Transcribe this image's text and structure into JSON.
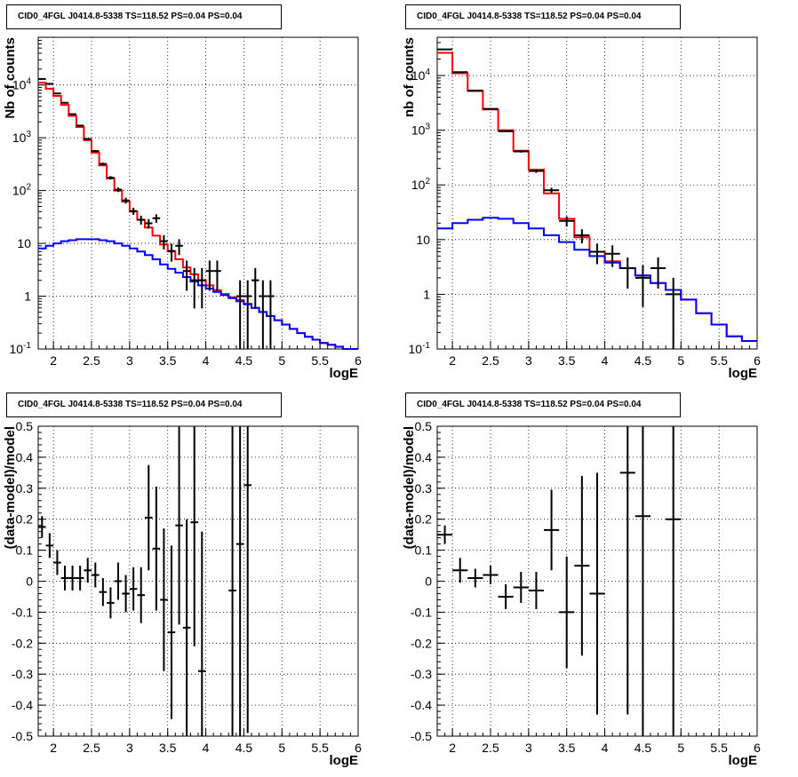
{
  "chart_data": [
    {
      "type": "histogram",
      "title": "CID0_4FGL J0414.8-5338 TS=118.52 PS=0.04 PS=0.04",
      "xlabel": "logE",
      "ylabel": "Nb of counts",
      "xlim": [
        1.8,
        6.0
      ],
      "ylim": [
        0.1,
        80000
      ],
      "log_y": true,
      "grid": true,
      "x_ticks": [
        "2",
        "2.5",
        "3",
        "3.5",
        "4",
        "4.5",
        "5",
        "5.5",
        "6"
      ],
      "y_ticks": [
        "10^-1",
        "1",
        "10",
        "10^2",
        "10^3",
        "10^4"
      ],
      "bin_width": 0.1,
      "series": [
        {
          "color": "#ff0000",
          "kind": "step",
          "x": [
            1.8,
            1.9,
            2.0,
            2.1,
            2.2,
            2.3,
            2.4,
            2.5,
            2.6,
            2.7,
            2.8,
            2.9,
            3.0,
            3.1,
            3.2,
            3.3,
            3.4,
            3.5,
            3.6,
            3.7,
            3.8,
            3.9,
            4.0,
            4.1,
            4.2,
            4.3,
            4.4,
            4.5,
            4.6,
            4.7,
            4.8,
            4.9,
            5.0,
            5.1,
            5.2,
            5.3,
            5.4,
            5.5,
            5.6,
            5.7,
            5.8,
            5.9
          ],
          "values": [
            11000,
            8500,
            6200,
            4200,
            2600,
            1600,
            900,
            520,
            300,
            170,
            100,
            62,
            40,
            28,
            20,
            14,
            9.5,
            7,
            5,
            3.5,
            2.6,
            2,
            1.6,
            1.3,
            1.1,
            0.95,
            0.85,
            0.72,
            0.6,
            0.5,
            0.42,
            0.35,
            0.29,
            0.24,
            0.2,
            0.17,
            0.15,
            0.13,
            0.12,
            0.11,
            0.1,
            0.1
          ]
        },
        {
          "color": "#0000ff",
          "kind": "step",
          "x": [
            1.8,
            1.9,
            2.0,
            2.1,
            2.2,
            2.3,
            2.4,
            2.5,
            2.6,
            2.7,
            2.8,
            2.9,
            3.0,
            3.1,
            3.2,
            3.3,
            3.4,
            3.5,
            3.6,
            3.7,
            3.8,
            3.9,
            4.0,
            4.1,
            4.2,
            4.3,
            4.4,
            4.5,
            4.6,
            4.7,
            4.8,
            4.9,
            5.0,
            5.1,
            5.2,
            5.3,
            5.4,
            5.5,
            5.6,
            5.7,
            5.8,
            5.9
          ],
          "values": [
            8,
            9,
            10,
            11,
            11.5,
            12,
            12,
            12,
            11.5,
            11,
            10,
            9,
            8,
            7,
            6,
            5,
            4,
            3.3,
            2.8,
            2.3,
            1.9,
            1.6,
            1.4,
            1.2,
            1.05,
            0.92,
            0.8,
            0.7,
            0.6,
            0.5,
            0.42,
            0.35,
            0.29,
            0.24,
            0.2,
            0.17,
            0.15,
            0.13,
            0.12,
            0.11,
            0.1,
            0.1
          ]
        }
      ],
      "points": {
        "color": "#000000",
        "x": [
          1.85,
          1.95,
          2.05,
          2.15,
          2.25,
          2.35,
          2.45,
          2.55,
          2.65,
          2.75,
          2.85,
          2.95,
          3.05,
          3.15,
          3.25,
          3.35,
          3.45,
          3.55,
          3.65,
          3.75,
          3.85,
          3.95,
          4.05,
          4.15,
          4.45,
          4.55,
          4.65,
          4.75,
          4.85
        ],
        "y": [
          13000,
          10500,
          6900,
          4600,
          2800,
          1700,
          950,
          560,
          320,
          175,
          104,
          65,
          41,
          28,
          24,
          30,
          11,
          7.2,
          9,
          3,
          2,
          2,
          3,
          3,
          1,
          1,
          2,
          1,
          1
        ]
      }
    },
    {
      "type": "histogram",
      "title": "CID0_4FGL J0414.8-5338 TS=118.52 PS=0.04 PS=0.04",
      "xlabel": "logE",
      "ylabel": "nb of counts",
      "xlim": [
        1.8,
        6.0
      ],
      "ylim": [
        0.1,
        50000
      ],
      "log_y": true,
      "grid": true,
      "x_ticks": [
        "2",
        "2.5",
        "3",
        "3.5",
        "4",
        "4.5",
        "5",
        "5.5",
        "6"
      ],
      "y_ticks": [
        "10^-1",
        "1",
        "10",
        "10^2",
        "10^3",
        "10^4"
      ],
      "bin_width": 0.2,
      "series": [
        {
          "color": "#ff0000",
          "kind": "step",
          "x": [
            1.8,
            2.0,
            2.2,
            2.4,
            2.6,
            2.8,
            3.0,
            3.2,
            3.4,
            3.6,
            3.8,
            4.0,
            4.2,
            4.4,
            4.6,
            4.8,
            5.0,
            5.2,
            5.4,
            5.6,
            5.8
          ],
          "values": [
            26000,
            11000,
            5200,
            2400,
            1000,
            420,
            190,
            70,
            24,
            11,
            6,
            4,
            3,
            2.2,
            1.6,
            1.2,
            0.8,
            0.45,
            0.28,
            0.17,
            0.14
          ]
        },
        {
          "color": "#0000ff",
          "kind": "step",
          "x": [
            1.8,
            2.0,
            2.2,
            2.4,
            2.6,
            2.8,
            3.0,
            3.2,
            3.4,
            3.6,
            3.8,
            4.0,
            4.2,
            4.4,
            4.6,
            4.8,
            5.0,
            5.2,
            5.4,
            5.6,
            5.8
          ],
          "values": [
            16,
            20,
            23,
            25,
            24,
            20,
            16,
            12,
            9,
            6.5,
            5,
            3.8,
            3,
            2.2,
            1.6,
            1.2,
            0.8,
            0.45,
            0.28,
            0.17,
            0.14
          ]
        }
      ],
      "points": {
        "color": "#000000",
        "x": [
          1.9,
          2.1,
          2.3,
          2.5,
          2.7,
          2.9,
          3.1,
          3.3,
          3.5,
          3.7,
          3.9,
          4.1,
          4.3,
          4.5,
          4.7,
          4.9
        ],
        "y": [
          30000,
          11500,
          5300,
          2450,
          960,
          410,
          180,
          80,
          22,
          12,
          6,
          5.5,
          3,
          2,
          3,
          1
        ]
      }
    },
    {
      "type": "scatter",
      "title": "CID0_4FGL J0414.8-5338 TS=118.52 PS=0.04 PS=0.04",
      "xlabel": "logE",
      "ylabel": "(data-model)/model",
      "xlim": [
        1.8,
        6.0
      ],
      "ylim": [
        -0.5,
        0.5
      ],
      "grid": true,
      "x_ticks": [
        "2",
        "2.5",
        "3",
        "3.5",
        "4",
        "4.5",
        "5",
        "5.5",
        "6"
      ],
      "y_ticks": [
        "-0.5",
        "-0.4",
        "-0.3",
        "-0.2",
        "-0.1",
        "0",
        "0.1",
        "0.2",
        "0.3",
        "0.4",
        "0.5"
      ],
      "points": {
        "color": "#000000",
        "xerr": 0.05,
        "x": [
          1.85,
          1.95,
          2.05,
          2.15,
          2.25,
          2.35,
          2.45,
          2.55,
          2.65,
          2.75,
          2.85,
          2.95,
          3.05,
          3.15,
          3.25,
          3.35,
          3.45,
          3.55,
          3.65,
          3.75,
          3.85,
          3.95,
          4.35,
          4.45,
          4.55
        ],
        "y": [
          0.175,
          0.115,
          0.06,
          0.01,
          0.01,
          0.01,
          0.035,
          0.02,
          -0.035,
          -0.07,
          0.0,
          -0.04,
          -0.025,
          -0.045,
          0.205,
          0.105,
          -0.06,
          -0.165,
          0.18,
          -0.15,
          0.19,
          -0.29,
          -0.03,
          0.12,
          0.31
        ],
        "yerr": [
          0.035,
          0.04,
          0.04,
          0.04,
          0.04,
          0.04,
          0.04,
          0.04,
          0.045,
          0.05,
          0.06,
          0.06,
          0.07,
          0.09,
          0.17,
          0.2,
          0.23,
          0.28,
          0.32,
          0.35,
          0.4,
          0.45,
          0.6,
          0.7,
          0.8
        ]
      }
    },
    {
      "type": "scatter",
      "title": "CID0_4FGL J0414.8-5338 TS=118.52 PS=0.04 PS=0.04",
      "xlabel": "logE",
      "ylabel": "(data-model)/model",
      "xlim": [
        1.8,
        6.0
      ],
      "ylim": [
        -0.5,
        0.5
      ],
      "grid": true,
      "x_ticks": [
        "2",
        "2.5",
        "3",
        "3.5",
        "4",
        "4.5",
        "5",
        "5.5",
        "6"
      ],
      "y_ticks": [
        "-0.5",
        "-0.4",
        "-0.3",
        "-0.2",
        "-0.1",
        "0",
        "0.1",
        "0.2",
        "0.3",
        "0.4",
        "0.5"
      ],
      "points": {
        "color": "#000000",
        "xerr": 0.1,
        "x": [
          1.9,
          2.1,
          2.3,
          2.5,
          2.7,
          2.9,
          3.1,
          3.3,
          3.5,
          3.7,
          3.9,
          4.3,
          4.5,
          4.9
        ],
        "y": [
          0.15,
          0.035,
          0.01,
          0.02,
          -0.05,
          -0.02,
          -0.03,
          0.165,
          -0.1,
          0.05,
          -0.04,
          0.35,
          0.21,
          0.2
        ],
        "yerr": [
          0.03,
          0.04,
          0.03,
          0.03,
          0.04,
          0.05,
          0.06,
          0.13,
          0.18,
          0.29,
          0.39,
          0.78,
          0.9,
          1.0
        ]
      }
    }
  ]
}
